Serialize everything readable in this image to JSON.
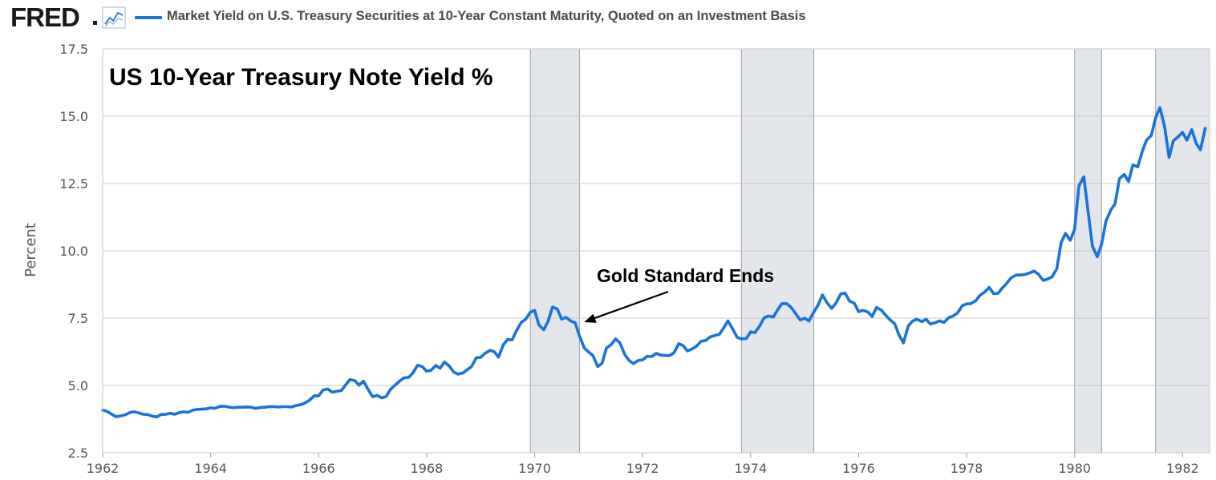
{
  "header": {
    "logo_text": "FRED",
    "logo_icon": "line-graph-icon",
    "legend_label": "Market Yield on U.S. Treasury Securities at 10-Year Constant Maturity, Quoted on an Investment Basis",
    "accent_color": "#1a73d6"
  },
  "chart_data": {
    "type": "line",
    "title": "US 10-Year Treasury Note Yield %",
    "xlabel": "",
    "ylabel": "Percent",
    "xlim": [
      1962.0,
      1982.5
    ],
    "ylim": [
      2.5,
      17.5
    ],
    "x_ticks": [
      "1962",
      "1964",
      "1966",
      "1968",
      "1970",
      "1972",
      "1974",
      "1976",
      "1978",
      "1980",
      "1982"
    ],
    "y_ticks": [
      "2.5",
      "5.0",
      "7.5",
      "10.0",
      "12.5",
      "15.0",
      "17.5"
    ],
    "grid": true,
    "line_color": "#1a73d6",
    "recession_color": "#e3e6ea",
    "recessions": [
      [
        1969.92,
        1970.83
      ],
      [
        1973.83,
        1975.17
      ],
      [
        1980.0,
        1980.5
      ],
      [
        1981.5,
        1982.5
      ]
    ],
    "annotation": {
      "text": "Gold Standard Ends",
      "x": 1970.92,
      "y": 7.35
    },
    "series": [
      {
        "x": [
          1962.0,
          1962.08,
          1962.17,
          1962.25,
          1962.33,
          1962.42,
          1962.5,
          1962.58,
          1962.67,
          1962.75,
          1962.83,
          1962.92,
          1963.0,
          1963.08,
          1963.17,
          1963.25,
          1963.33,
          1963.42,
          1963.5,
          1963.58,
          1963.67,
          1963.75,
          1963.83,
          1963.92,
          1964.0,
          1964.08,
          1964.17,
          1964.25,
          1964.33,
          1964.42,
          1964.5,
          1964.58,
          1964.67,
          1964.75,
          1964.83,
          1964.92,
          1965.0,
          1965.08,
          1965.17,
          1965.25,
          1965.33,
          1965.42,
          1965.5,
          1965.58,
          1965.67,
          1965.75,
          1965.83,
          1965.92,
          1966.0,
          1966.08,
          1966.17,
          1966.25,
          1966.33,
          1966.42,
          1966.5,
          1966.58,
          1966.67,
          1966.75,
          1966.83,
          1966.92,
          1967.0,
          1967.08,
          1967.17,
          1967.25,
          1967.33,
          1967.42,
          1967.5,
          1967.58,
          1967.67,
          1967.75,
          1967.83,
          1967.92,
          1968.0,
          1968.08,
          1968.17,
          1968.25,
          1968.33,
          1968.42,
          1968.5,
          1968.58,
          1968.67,
          1968.75,
          1968.83,
          1968.92,
          1969.0,
          1969.08,
          1969.17,
          1969.25,
          1969.33,
          1969.42,
          1969.5,
          1969.58,
          1969.67,
          1969.75,
          1969.83,
          1969.92,
          1970.0,
          1970.08,
          1970.17,
          1970.25,
          1970.33,
          1970.42,
          1970.5,
          1970.58,
          1970.67,
          1970.75,
          1970.83,
          1970.92,
          1971.0,
          1971.08,
          1971.17,
          1971.25,
          1971.33,
          1971.42,
          1971.5,
          1971.58,
          1971.67,
          1971.75,
          1971.83,
          1971.92,
          1972.0,
          1972.08,
          1972.17,
          1972.25,
          1972.33,
          1972.42,
          1972.5,
          1972.58,
          1972.67,
          1972.75,
          1972.83,
          1972.92,
          1973.0,
          1973.08,
          1973.17,
          1973.25,
          1973.33,
          1973.42,
          1973.5,
          1973.58,
          1973.67,
          1973.75,
          1973.83,
          1973.92,
          1974.0,
          1974.08,
          1974.17,
          1974.25,
          1974.33,
          1974.42,
          1974.5,
          1974.58,
          1974.67,
          1974.75,
          1974.83,
          1974.92,
          1975.0,
          1975.08,
          1975.17,
          1975.25,
          1975.33,
          1975.42,
          1975.5,
          1975.58,
          1975.67,
          1975.75,
          1975.83,
          1975.92,
          1976.0,
          1976.08,
          1976.17,
          1976.25,
          1976.33,
          1976.42,
          1976.5,
          1976.58,
          1976.67,
          1976.75,
          1976.83,
          1976.92,
          1977.0,
          1977.08,
          1977.17,
          1977.25,
          1977.33,
          1977.42,
          1977.5,
          1977.58,
          1977.67,
          1977.75,
          1977.83,
          1977.92,
          1978.0,
          1978.08,
          1978.17,
          1978.25,
          1978.33,
          1978.42,
          1978.5,
          1978.58,
          1978.67,
          1978.75,
          1978.83,
          1978.92,
          1979.0,
          1979.08,
          1979.17,
          1979.25,
          1979.33,
          1979.42,
          1979.5,
          1979.58,
          1979.67,
          1979.75,
          1979.83,
          1979.92,
          1980.0,
          1980.08,
          1980.17,
          1980.25,
          1980.33,
          1980.42,
          1980.5,
          1980.58,
          1980.67,
          1980.75,
          1980.83,
          1980.92,
          1981.0,
          1981.08,
          1981.17,
          1981.25,
          1981.33,
          1981.42,
          1981.5,
          1981.58,
          1981.67,
          1981.75,
          1981.83,
          1981.92,
          1982.0,
          1982.08,
          1982.17,
          1982.25,
          1982.33,
          1982.42
        ],
        "y": [
          4.08,
          4.04,
          3.93,
          3.84,
          3.87,
          3.91,
          3.99,
          4.02,
          3.98,
          3.93,
          3.92,
          3.86,
          3.83,
          3.92,
          3.93,
          3.97,
          3.93,
          3.99,
          4.02,
          4.0,
          4.08,
          4.11,
          4.12,
          4.13,
          4.17,
          4.15,
          4.22,
          4.23,
          4.2,
          4.17,
          4.19,
          4.19,
          4.2,
          4.19,
          4.15,
          4.18,
          4.19,
          4.21,
          4.21,
          4.2,
          4.21,
          4.21,
          4.2,
          4.25,
          4.29,
          4.35,
          4.45,
          4.62,
          4.61,
          4.83,
          4.87,
          4.75,
          4.78,
          4.81,
          5.02,
          5.22,
          5.18,
          5.01,
          5.16,
          4.84,
          4.58,
          4.63,
          4.54,
          4.59,
          4.85,
          5.02,
          5.16,
          5.28,
          5.3,
          5.48,
          5.75,
          5.7,
          5.53,
          5.56,
          5.74,
          5.64,
          5.87,
          5.72,
          5.5,
          5.42,
          5.46,
          5.58,
          5.7,
          6.03,
          6.04,
          6.19,
          6.3,
          6.26,
          6.05,
          6.51,
          6.71,
          6.69,
          7.05,
          7.34,
          7.45,
          7.72,
          7.79,
          7.24,
          7.07,
          7.39,
          7.91,
          7.84,
          7.46,
          7.53,
          7.39,
          7.33,
          6.84,
          6.39,
          6.24,
          6.11,
          5.7,
          5.83,
          6.39,
          6.52,
          6.73,
          6.58,
          6.14,
          5.93,
          5.81,
          5.93,
          5.95,
          6.08,
          6.07,
          6.19,
          6.13,
          6.11,
          6.11,
          6.21,
          6.55,
          6.48,
          6.28,
          6.36,
          6.46,
          6.64,
          6.67,
          6.8,
          6.85,
          6.9,
          7.13,
          7.4,
          7.09,
          6.79,
          6.73,
          6.74,
          6.99,
          6.96,
          7.21,
          7.51,
          7.58,
          7.54,
          7.81,
          8.04,
          8.04,
          7.9,
          7.68,
          7.43,
          7.5,
          7.39,
          7.73,
          7.99,
          8.36,
          8.06,
          7.86,
          8.06,
          8.4,
          8.43,
          8.14,
          8.05,
          7.74,
          7.79,
          7.73,
          7.56,
          7.9,
          7.8,
          7.61,
          7.44,
          7.29,
          6.87,
          6.58,
          7.21,
          7.39,
          7.46,
          7.37,
          7.46,
          7.28,
          7.33,
          7.4,
          7.34,
          7.52,
          7.58,
          7.69,
          7.96,
          8.03,
          8.04,
          8.15,
          8.35,
          8.46,
          8.64,
          8.41,
          8.42,
          8.64,
          8.81,
          9.01,
          9.1,
          9.1,
          9.12,
          9.18,
          9.25,
          9.13,
          8.9,
          8.95,
          9.03,
          9.33,
          10.3,
          10.65,
          10.39,
          10.8,
          12.41,
          12.75,
          11.47,
          10.18,
          9.78,
          10.25,
          11.1,
          11.51,
          11.75,
          12.68,
          12.84,
          12.57,
          13.19,
          13.12,
          13.68,
          14.1,
          14.28,
          14.94,
          15.32,
          14.58,
          13.47,
          14.09,
          14.24,
          14.4,
          14.11,
          14.5,
          14.0,
          13.75,
          14.55
        ]
      }
    ]
  }
}
